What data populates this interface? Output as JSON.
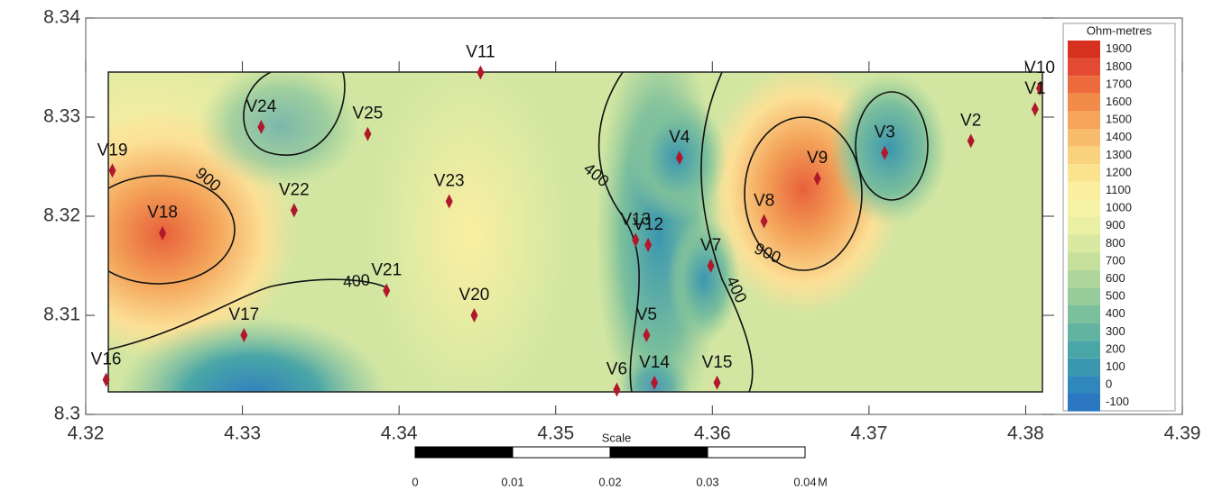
{
  "chart_data": {
    "type": "contour",
    "xlim": [
      4.32,
      4.39
    ],
    "xticks": [
      4.32,
      4.33,
      4.34,
      4.35,
      4.36,
      4.37,
      4.38,
      4.39
    ],
    "ylim": [
      8.3,
      8.34
    ],
    "yticks": [
      {
        "value": 8.3,
        "label": "8.3"
      },
      8.31,
      8.32,
      8.33,
      8.34
    ],
    "point_color": "#b2182b",
    "stations": {
      "names": [
        "V11",
        "V10",
        "V1",
        "V2",
        "V3",
        "V4",
        "V9",
        "V8",
        "V24",
        "V25",
        "V19",
        "V22",
        "V23",
        "V18",
        "V13",
        "V12",
        "V7",
        "V21",
        "V20",
        "V5",
        "V17",
        "V16",
        "V6",
        "V14",
        "V15"
      ],
      "x": [
        4.3452,
        4.3809,
        4.3806,
        4.3765,
        4.371,
        4.3579,
        4.3667,
        4.3633,
        4.3312,
        4.338,
        4.3217,
        4.3333,
        4.3432,
        4.3249,
        4.3551,
        4.3559,
        4.3599,
        4.3392,
        4.3448,
        4.3558,
        4.3301,
        4.3213,
        4.3539,
        4.3563,
        4.3603
      ],
      "y": [
        8.3345,
        8.3329,
        8.3308,
        8.3276,
        8.3264,
        8.3259,
        8.3238,
        8.3195,
        8.329,
        8.3283,
        8.3246,
        8.3206,
        8.3215,
        8.3183,
        8.3176,
        8.3171,
        8.315,
        8.3125,
        8.31,
        8.308,
        8.308,
        8.3035,
        8.3025,
        8.3032,
        8.3032
      ]
    },
    "contour_labels": [
      "900",
      "400",
      "400",
      "900",
      "400"
    ],
    "colorbar": {
      "title": "Ohm-metres",
      "levels": [
        1900,
        1800,
        1700,
        1600,
        1500,
        1400,
        1300,
        1200,
        1100,
        1000,
        900,
        800,
        700,
        600,
        500,
        400,
        300,
        200,
        100,
        0,
        -100
      ],
      "colors": [
        "#d7301f",
        "#e34a33",
        "#ec6a3c",
        "#f28a48",
        "#f5a55a",
        "#f8bd6c",
        "#fad27e",
        "#fbe28f",
        "#fbee9f",
        "#f6f3a6",
        "#e9efa3",
        "#d9e8a0",
        "#c6e09c",
        "#afd69a",
        "#96cb9a",
        "#7cbf9c",
        "#62b3a0",
        "#4aa6a6",
        "#3b97b0",
        "#2f87bb",
        "#2c77c2"
      ]
    },
    "scale_bar": {
      "label": "Scale",
      "ticks": [
        0,
        0.01,
        0.02,
        0.03,
        0.04
      ],
      "unit": "M"
    }
  }
}
